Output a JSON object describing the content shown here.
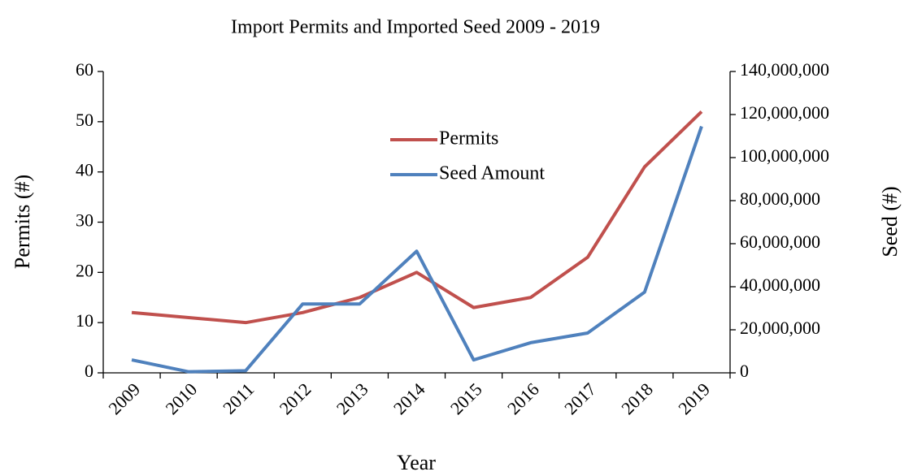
{
  "chart_data": {
    "type": "line",
    "title": "Import Permits and Imported Seed 2009 - 2019",
    "x_label": "Year",
    "y_label": "Permits (#)",
    "y2_label": "Seed (#)",
    "categories": [
      "2009",
      "2010",
      "2011",
      "2012",
      "2013",
      "2014",
      "2015",
      "2016",
      "2017",
      "2018",
      "2019"
    ],
    "series": [
      {
        "name": "Permits",
        "color": "#c0504d",
        "values": [
          12,
          11,
          10,
          12,
          15,
          20,
          13,
          15,
          23,
          41,
          52
        ]
      },
      {
        "name": "Seed Amount",
        "color": "#4f81bd",
        "axis": "y2",
        "values": [
          6000000,
          500000,
          1000000,
          32000000,
          32000000,
          56500000,
          6000000,
          14000000,
          18500000,
          37500000,
          114500000
        ]
      }
    ],
    "ylim": [
      0,
      60
    ],
    "yticks": [
      0,
      10,
      20,
      30,
      40,
      50,
      60
    ],
    "y2lim": [
      0,
      140000000
    ],
    "y2ticks": [
      0,
      {
        "value": 20000000,
        "label": "20,000,000"
      },
      {
        "value": 40000000,
        "label": "40,000,000"
      },
      {
        "value": 60000000,
        "label": "60,000,000"
      },
      {
        "value": 80000000,
        "label": "80,000,000"
      },
      {
        "value": 100000000,
        "label": "100,000,000"
      },
      {
        "value": 120000000,
        "label": "120,000,000"
      },
      {
        "value": 140000000,
        "label": "140,000,000"
      }
    ],
    "legend": "center"
  }
}
